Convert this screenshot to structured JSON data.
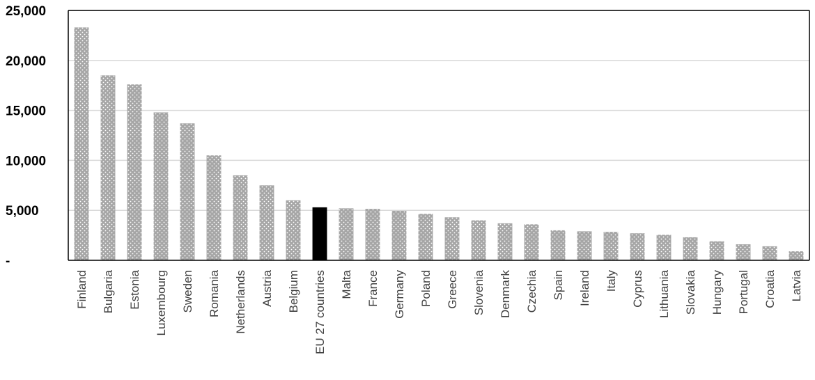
{
  "chart_data": {
    "type": "bar",
    "title": "",
    "xlabel": "",
    "ylabel": "",
    "ylim": [
      0,
      25000
    ],
    "yticks": [
      0,
      5000,
      10000,
      15000,
      20000,
      25000
    ],
    "ytick_labels": [
      "-",
      "5,000",
      "10,000",
      "15,000",
      "20,000",
      "25,000"
    ],
    "grid": "horizontal",
    "highlight_category": "EU 27 countries",
    "colors": {
      "bar": "#a6a6a6",
      "bar_dots": "#ffffff",
      "highlight": "#000000",
      "grid": "#d9d9d9",
      "axis": "#000000"
    },
    "categories": [
      "Finland",
      "Bulgaria",
      "Estonia",
      "Luxembourg",
      "Sweden",
      "Romania",
      "Netherlands",
      "Austria",
      "Belgium",
      "EU 27 countries",
      "Malta",
      "France",
      "Germany",
      "Poland",
      "Greece",
      "Slovenia",
      "Denmark",
      "Czechia",
      "Spain",
      "Ireland",
      "Italy",
      "Cyprus",
      "Lithuania",
      "Slovakia",
      "Hungary",
      "Portugal",
      "Croatia",
      "Latvia"
    ],
    "values": [
      23300,
      18500,
      17600,
      14800,
      13700,
      10500,
      8500,
      7500,
      6000,
      5300,
      5200,
      5150,
      4950,
      4650,
      4300,
      4000,
      3700,
      3600,
      3000,
      2900,
      2850,
      2700,
      2550,
      2300,
      1900,
      1600,
      1400,
      900
    ]
  }
}
